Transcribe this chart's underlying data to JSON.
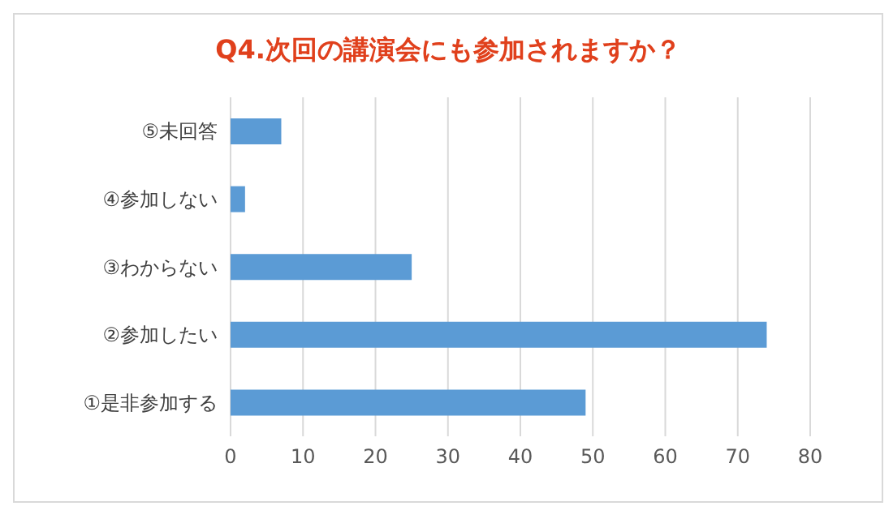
{
  "chart_data": {
    "type": "bar",
    "orientation": "horizontal",
    "title": "Q4.次回の講演会にも参加されますか？",
    "categories": [
      "⑤未回答",
      "④参加しない",
      "③わからない",
      "②参加したい",
      "①是非参加する"
    ],
    "values": [
      7,
      2,
      25,
      74,
      49
    ],
    "color": "#5b9bd5",
    "xlim": [
      0,
      80
    ],
    "xticks": [
      0,
      10,
      20,
      30,
      40,
      50,
      60,
      70,
      80
    ],
    "grid": "x"
  }
}
